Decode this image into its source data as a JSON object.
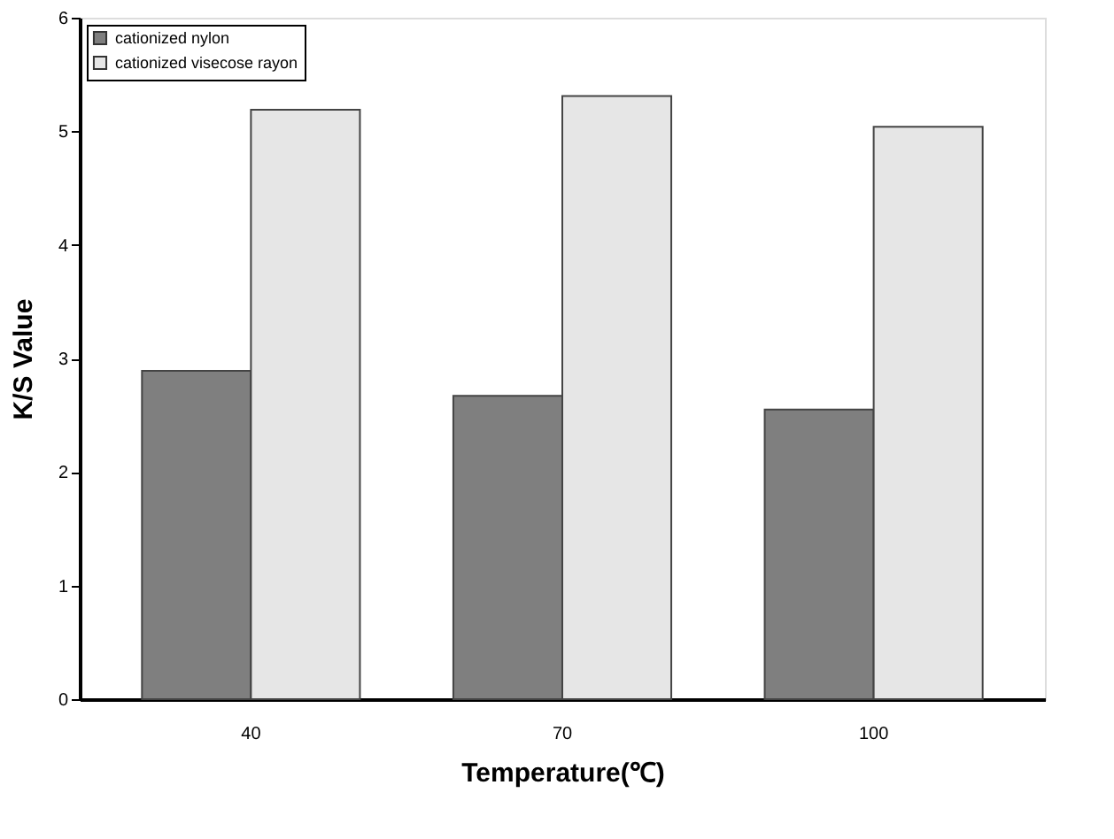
{
  "chart_data": {
    "type": "bar",
    "xlabel": "Temperature(℃)",
    "ylabel": "K/S Value",
    "categories": [
      "40",
      "70",
      "100"
    ],
    "series": [
      {
        "name": "cationized nylon",
        "color": "#7f7f7f",
        "values": [
          2.89,
          2.67,
          2.55
        ]
      },
      {
        "name": "cationized visecose rayon",
        "color": "#e6e6e6",
        "values": [
          5.19,
          5.31,
          5.04
        ]
      }
    ],
    "ylim": [
      0,
      6
    ],
    "yticks": [
      0,
      1,
      2,
      3,
      4,
      5,
      6
    ],
    "grid": false,
    "legend": "top left"
  }
}
